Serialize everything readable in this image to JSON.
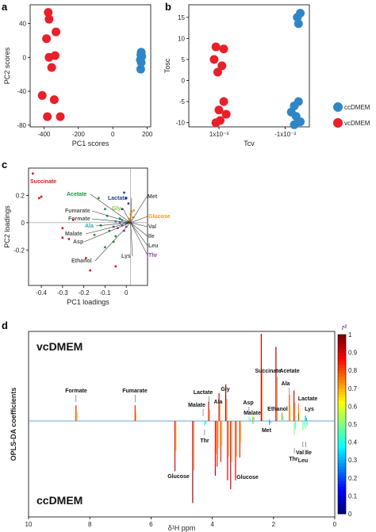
{
  "chart_data": [
    {
      "panel": "a",
      "type": "scatter",
      "xlabel": "PC1 scores",
      "ylabel": "PC2 scores",
      "xlim": [
        -480,
        220
      ],
      "ylim": [
        -82,
        62
      ],
      "xticks": [
        -400,
        -200,
        0,
        200
      ],
      "yticks": [
        -80,
        -40,
        0,
        40
      ],
      "xtick_labels": [
        "-400",
        "-200",
        "0",
        "200"
      ],
      "ytick_labels": [
        "-80",
        "-40",
        "0",
        "40"
      ],
      "series": [
        {
          "name": "vcDMEM",
          "color": "#e8202a",
          "points": [
            [
              -375,
              53
            ],
            [
              -370,
              45
            ],
            [
              -385,
              22
            ],
            [
              -330,
              30
            ],
            [
              -370,
              0
            ],
            [
              -335,
              2
            ],
            [
              -355,
              -12
            ],
            [
              -410,
              -45
            ],
            [
              -340,
              -50
            ],
            [
              -380,
              -70
            ],
            [
              -305,
              -70
            ]
          ]
        },
        {
          "name": "ccDMEM",
          "color": "#2f86c7",
          "points": [
            [
              165,
              6
            ],
            [
              163,
              3
            ],
            [
              168,
              1
            ],
            [
              160,
              -3
            ],
            [
              165,
              -6
            ],
            [
              162,
              -14
            ]
          ]
        }
      ]
    },
    {
      "panel": "b",
      "type": "scatter",
      "xlabel": "Tcv",
      "ylabel": "Tosc",
      "xlim": [
        0,
        2
      ],
      "ylim": [
        -11,
        18
      ],
      "xticks": [
        0.5,
        1.6
      ],
      "yticks": [
        -10,
        -5,
        0,
        5,
        10,
        15
      ],
      "xtick_labels": [
        "1x10⁻³",
        "-1x10⁻³"
      ],
      "ytick_labels": [
        "-10",
        "-5",
        "0",
        "5",
        "10",
        "15"
      ],
      "series": [
        {
          "name": "vcDMEM",
          "color": "#e8202a",
          "points": [
            [
              0.45,
              8
            ],
            [
              0.58,
              7.5
            ],
            [
              0.42,
              5
            ],
            [
              0.55,
              3.5
            ],
            [
              0.48,
              2
            ],
            [
              0.58,
              -5
            ],
            [
              0.5,
              -7
            ],
            [
              0.62,
              -8
            ],
            [
              0.52,
              -9.5
            ],
            [
              0.45,
              -10
            ]
          ]
        },
        {
          "name": "ccDMEM",
          "color": "#2f86c7",
          "points": [
            [
              1.85,
              16
            ],
            [
              1.8,
              15
            ],
            [
              1.82,
              13.5
            ],
            [
              1.82,
              -5
            ],
            [
              1.75,
              -6
            ],
            [
              1.7,
              -7.5
            ],
            [
              1.78,
              -8.5
            ],
            [
              1.85,
              -9.8
            ],
            [
              1.75,
              -10.5
            ]
          ]
        }
      ]
    },
    {
      "panel": "c",
      "type": "scatter",
      "xlabel": "PC1 loadings",
      "ylabel": "PC2 loadings",
      "xlim": [
        -0.46,
        0.1
      ],
      "ylim": [
        -0.46,
        0.4
      ],
      "xticks": [
        -0.4,
        -0.3,
        -0.2,
        -0.1,
        0
      ],
      "yticks": [
        -0.2,
        0,
        0.2
      ],
      "xtick_labels": [
        "-0.4",
        "-0.3",
        "-0.2",
        "-0.1",
        "0"
      ],
      "ytick_labels": [
        "-0.2",
        "0",
        "0.2"
      ],
      "labels": [
        {
          "text": "Succinate",
          "color": "#d7191c"
        },
        {
          "text": "Acetate",
          "color": "#1a9641"
        },
        {
          "text": "Lactate",
          "color": "#2c3e91"
        },
        {
          "text": "Met",
          "color": "#555555"
        },
        {
          "text": "Gly",
          "color": "#8cc63e"
        },
        {
          "text": "Fumarate",
          "color": "#555555"
        },
        {
          "text": "Formate",
          "color": "#555555"
        },
        {
          "text": "Glucose",
          "color": "#f7941d"
        },
        {
          "text": "Ala",
          "color": "#27a9b8"
        },
        {
          "text": "Val",
          "color": "#555555"
        },
        {
          "text": "Malate",
          "color": "#555555"
        },
        {
          "text": "Asp",
          "color": "#555555"
        },
        {
          "text": "Ile",
          "color": "#555555"
        },
        {
          "text": "Leu",
          "color": "#555555"
        },
        {
          "text": "Ethanol",
          "color": "#555555"
        },
        {
          "text": "Lys",
          "color": "#555555"
        },
        {
          "text": "Thr",
          "color": "#8e44ad"
        }
      ],
      "points": [
        [
          -0.44,
          0.36,
          "#d7191c"
        ],
        [
          -0.41,
          0.18,
          "#d7191c"
        ],
        [
          -0.4,
          0.19,
          "#d7191c"
        ],
        [
          -0.3,
          -0.11,
          "#d7191c"
        ],
        [
          -0.27,
          -0.12,
          "#d7191c"
        ],
        [
          -0.19,
          -0.26,
          "#d7191c"
        ],
        [
          -0.17,
          -0.35,
          "#d7191c"
        ],
        [
          -0.05,
          -0.32,
          "#d7191c"
        ],
        [
          -0.3,
          -0.04,
          "#d7191c"
        ],
        [
          -0.25,
          0.02,
          "#d7191c"
        ],
        [
          -0.13,
          0.18,
          "#1a9641"
        ],
        [
          -0.1,
          0.1,
          "#1a9641"
        ],
        [
          -0.09,
          0.05,
          "#1a9641"
        ],
        [
          -0.12,
          -0.02,
          "#1a9641"
        ],
        [
          -0.08,
          -0.06,
          "#1a9641"
        ],
        [
          -0.15,
          -0.09,
          "#1a9641"
        ],
        [
          -0.1,
          -0.18,
          "#1a9641"
        ],
        [
          -0.06,
          -0.14,
          "#1a9641"
        ],
        [
          -0.03,
          0.03,
          "#1a9641"
        ],
        [
          -0.05,
          -0.1,
          "#1a9641"
        ],
        [
          -0.01,
          0.22,
          "#2c3e91"
        ],
        [
          0.0,
          0.18,
          "#2c3e91"
        ],
        [
          0.01,
          0.14,
          "#2c3e91"
        ],
        [
          -0.02,
          0.1,
          "#2c3e91"
        ],
        [
          0.02,
          0.06,
          "#f7941d"
        ],
        [
          0.03,
          0.04,
          "#f7941d"
        ],
        [
          0.02,
          0.02,
          "#f7941d"
        ],
        [
          0.01,
          0.01,
          "#f7941d"
        ],
        [
          0.025,
          0.08,
          "#f7941d"
        ],
        [
          0.035,
          0.09,
          "#f7941d"
        ],
        [
          0.015,
          0.03,
          "#f7941d"
        ],
        [
          -0.02,
          -0.02,
          "#8e44ad"
        ],
        [
          -0.04,
          -0.04,
          "#8e44ad"
        ],
        [
          -0.01,
          -0.06,
          "#8e44ad"
        ],
        [
          0.0,
          -0.03,
          "#8e44ad"
        ],
        [
          -0.06,
          -0.03,
          "#8e44ad"
        ],
        [
          -0.03,
          0.0,
          "#8e44ad"
        ],
        [
          -0.02,
          0.02,
          "#27a9b8"
        ],
        [
          0.0,
          0.0,
          "#27a9b8"
        ],
        [
          -0.05,
          0.01,
          "#27a9b8"
        ]
      ],
      "vector_origin": [
        0.02,
        0.0
      ]
    },
    {
      "panel": "d",
      "type": "line",
      "xlabel": "δ¹H ppm",
      "ylabel": "OPLS-DA coefficients",
      "xlim": [
        10,
        0
      ],
      "xticks": [
        10,
        8,
        6,
        4,
        2,
        0
      ],
      "xtick_labels": [
        "10",
        "8",
        "6",
        "4",
        "2",
        "0"
      ],
      "group_top": "vcDMEM",
      "group_bottom": "ccDMEM",
      "colorbar": {
        "label": "r²",
        "range": [
          0,
          1
        ],
        "ticks": [
          "0",
          "0.1",
          "0.2",
          "0.3",
          "0.4",
          "0.5",
          "0.6",
          "0.7",
          "0.8",
          "0.9",
          "1"
        ]
      },
      "peak_labels": [
        {
          "text": "Formate",
          "ppm": 8.45
        },
        {
          "text": "Fumarate",
          "ppm": 6.52
        },
        {
          "text": "Succinate",
          "ppm": 2.4
        },
        {
          "text": "Acetate",
          "ppm": 1.92
        },
        {
          "text": "Gly",
          "ppm": 3.56
        },
        {
          "text": "Ala",
          "ppm": 1.48
        },
        {
          "text": "Ala",
          "ppm": 3.78
        },
        {
          "text": "Lactate",
          "ppm": 4.11
        },
        {
          "text": "Lactate",
          "ppm": 1.33
        },
        {
          "text": "Asp",
          "ppm": 2.8
        },
        {
          "text": "Malate",
          "ppm": 2.67
        },
        {
          "text": "Malate",
          "ppm": 4.3
        },
        {
          "text": "Ethanol",
          "ppm": 1.18
        },
        {
          "text": "Lys",
          "ppm": 1.72
        },
        {
          "text": "Thr",
          "ppm": 4.25
        },
        {
          "text": "Met",
          "ppm": 2.13
        },
        {
          "text": "Thr",
          "ppm": 1.32
        },
        {
          "text": "Val",
          "ppm": 1.04
        },
        {
          "text": "Ile",
          "ppm": 0.94
        },
        {
          "text": "Leu",
          "ppm": 0.96
        },
        {
          "text": "Glucose",
          "ppm": 5.22
        },
        {
          "text": "Glucose",
          "ppm": 3.4
        }
      ],
      "peaks": [
        {
          "ppm": 8.45,
          "h": 0.18,
          "r2": 0.85
        },
        {
          "ppm": 6.52,
          "h": 0.18,
          "r2": 0.85
        },
        {
          "ppm": 4.12,
          "h": 0.22,
          "r2": 0.9
        },
        {
          "ppm": 3.56,
          "h": 0.42,
          "r2": 0.95
        },
        {
          "ppm": 3.78,
          "h": 0.32,
          "r2": 0.9
        },
        {
          "ppm": 2.4,
          "h": 1.0,
          "r2": 0.95
        },
        {
          "ppm": 1.92,
          "h": 0.85,
          "r2": 0.95
        },
        {
          "ppm": 1.33,
          "h": 0.35,
          "r2": 0.9
        },
        {
          "ppm": 1.48,
          "h": 0.3,
          "r2": 0.8
        },
        {
          "ppm": 1.18,
          "h": 0.2,
          "r2": 0.75
        },
        {
          "ppm": 2.67,
          "h": 0.08,
          "r2": 0.6
        },
        {
          "ppm": 2.8,
          "h": 0.05,
          "r2": 0.5
        },
        {
          "ppm": 1.72,
          "h": 0.1,
          "r2": 0.6
        },
        {
          "ppm": 0.96,
          "h": 0.06,
          "r2": 0.3
        },
        {
          "ppm": 5.22,
          "h": -0.55,
          "r2": 0.9
        },
        {
          "ppm": 4.64,
          "h": -0.9,
          "r2": 0.95
        },
        {
          "ppm": 3.9,
          "h": -0.6,
          "r2": 0.9
        },
        {
          "ppm": 3.84,
          "h": -0.5,
          "r2": 0.85
        },
        {
          "ppm": 3.72,
          "h": -0.45,
          "r2": 0.85
        },
        {
          "ppm": 3.5,
          "h": -0.65,
          "r2": 0.9
        },
        {
          "ppm": 3.4,
          "h": -0.75,
          "r2": 0.9
        },
        {
          "ppm": 3.24,
          "h": -0.65,
          "r2": 0.9
        },
        {
          "ppm": 3.1,
          "h": -0.4,
          "r2": 0.85
        },
        {
          "ppm": 4.25,
          "h": -0.05,
          "r2": 0.4
        },
        {
          "ppm": 2.13,
          "h": -0.04,
          "r2": 0.4
        },
        {
          "ppm": 1.32,
          "h": -0.15,
          "r2": 0.5
        },
        {
          "ppm": 1.04,
          "h": -0.1,
          "r2": 0.5
        },
        {
          "ppm": 0.94,
          "h": -0.08,
          "r2": 0.5
        }
      ]
    }
  ]
}
